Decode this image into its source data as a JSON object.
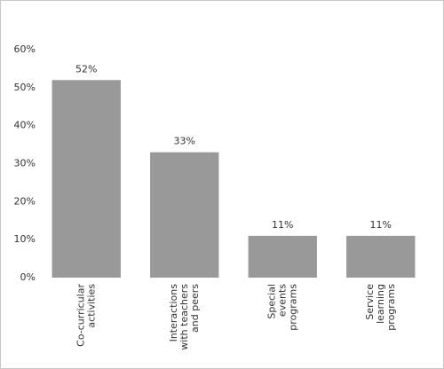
{
  "chart_data": {
    "type": "bar",
    "categories": [
      [
        "Co-curricular",
        "activities"
      ],
      [
        "Interactions",
        "with teachers",
        "and peers"
      ],
      [
        "Special",
        "events",
        "programs"
      ],
      [
        "Service",
        "learning",
        "programs"
      ]
    ],
    "values": [
      52,
      33,
      11,
      11
    ],
    "value_labels": [
      "52%",
      "33%",
      "11%",
      "11%"
    ],
    "color": "#999999",
    "ylim": [
      0,
      60
    ],
    "yticks": [
      {
        "value": 0,
        "label": "0%"
      },
      {
        "value": 10,
        "label": "10%"
      },
      {
        "value": 20,
        "label": "20%"
      },
      {
        "value": 30,
        "label": "30%"
      },
      {
        "value": 40,
        "label": "40%"
      },
      {
        "value": 50,
        "label": "50%"
      },
      {
        "value": 60,
        "label": "60%"
      }
    ]
  }
}
